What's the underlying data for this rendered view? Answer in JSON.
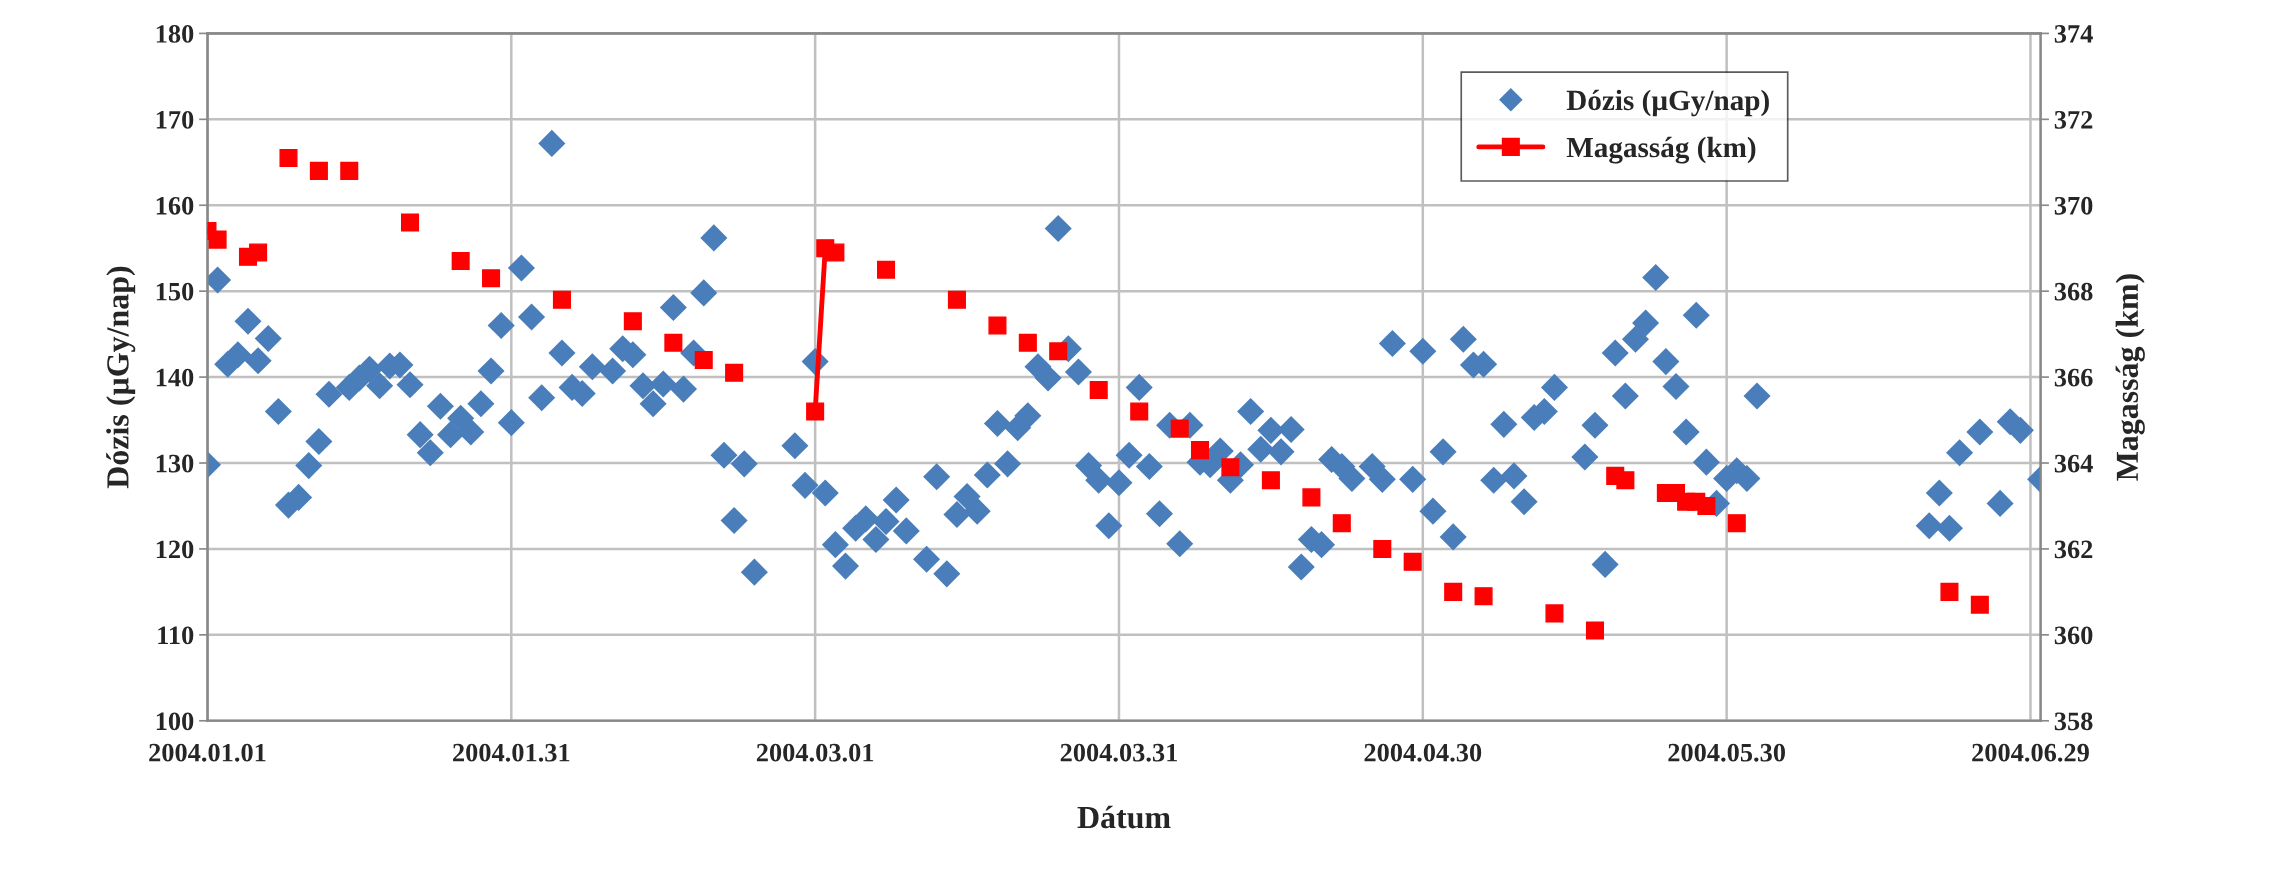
{
  "chart_data": {
    "type": "scatter",
    "xlabel": "Dátum",
    "ylabel": "Dózis (µGy/nap)",
    "y2label": "Magasság (km)",
    "xlim": [
      "2004-01-01",
      "2004-06-30"
    ],
    "xticks": [
      {
        "value": "2004-01-01",
        "label": "2004.01.01"
      },
      {
        "value": "2004-01-31",
        "label": "2004.01.31"
      },
      {
        "value": "2004-03-01",
        "label": "2004.03.01"
      },
      {
        "value": "2004-03-31",
        "label": "2004.03.31"
      },
      {
        "value": "2004-04-30",
        "label": "2004.04.30"
      },
      {
        "value": "2004-05-30",
        "label": "2004.05.30"
      },
      {
        "value": "2004-06-29",
        "label": "2004.06.29"
      }
    ],
    "ylim": [
      100,
      180
    ],
    "yticks": [
      100,
      110,
      120,
      130,
      140,
      150,
      160,
      170,
      180
    ],
    "y2lim": [
      358,
      374
    ],
    "y2ticks": [
      358,
      360,
      362,
      364,
      366,
      368,
      370,
      372,
      374
    ],
    "grid": true,
    "legend": "top right",
    "series": [
      {
        "name": "Dózis (µGy/nap)",
        "marker": "diamond",
        "color": "#4a7ebb",
        "x": [
          "2004-01-01",
          "2004-01-02",
          "2004-01-03",
          "2004-01-04",
          "2004-01-05",
          "2004-01-06",
          "2004-01-07",
          "2004-01-08",
          "2004-01-09",
          "2004-01-10",
          "2004-01-11",
          "2004-01-12",
          "2004-01-13",
          "2004-01-15",
          "2004-01-16",
          "2004-01-17",
          "2004-01-18",
          "2004-01-19",
          "2004-01-20",
          "2004-01-21",
          "2004-01-22",
          "2004-01-23",
          "2004-01-24",
          "2004-01-25",
          "2004-01-26",
          "2004-01-27",
          "2004-01-28",
          "2004-01-29",
          "2004-01-30",
          "2004-01-31",
          "2004-02-01",
          "2004-02-02",
          "2004-02-03",
          "2004-02-04",
          "2004-02-05",
          "2004-02-06",
          "2004-02-07",
          "2004-02-08",
          "2004-02-10",
          "2004-02-11",
          "2004-02-12",
          "2004-02-13",
          "2004-02-14",
          "2004-02-15",
          "2004-02-16",
          "2004-02-17",
          "2004-02-18",
          "2004-02-19",
          "2004-02-20",
          "2004-02-21",
          "2004-02-22",
          "2004-02-23",
          "2004-02-24",
          "2004-02-28",
          "2004-02-29",
          "2004-03-01",
          "2004-03-02",
          "2004-03-03",
          "2004-03-04",
          "2004-03-05",
          "2004-03-06",
          "2004-03-07",
          "2004-03-08",
          "2004-03-09",
          "2004-03-10",
          "2004-03-12",
          "2004-03-13",
          "2004-03-14",
          "2004-03-15",
          "2004-03-16",
          "2004-03-17",
          "2004-03-18",
          "2004-03-19",
          "2004-03-20",
          "2004-03-21",
          "2004-03-22",
          "2004-03-23",
          "2004-03-24",
          "2004-03-25",
          "2004-03-26",
          "2004-03-27",
          "2004-03-28",
          "2004-03-29",
          "2004-03-30",
          "2004-03-31",
          "2004-04-01",
          "2004-04-02",
          "2004-04-03",
          "2004-04-04",
          "2004-04-05",
          "2004-04-06",
          "2004-04-07",
          "2004-04-08",
          "2004-04-09",
          "2004-04-10",
          "2004-04-11",
          "2004-04-12",
          "2004-04-13",
          "2004-04-14",
          "2004-04-15",
          "2004-04-16",
          "2004-04-17",
          "2004-04-18",
          "2004-04-19",
          "2004-04-20",
          "2004-04-21",
          "2004-04-22",
          "2004-04-23",
          "2004-04-25",
          "2004-04-26",
          "2004-04-27",
          "2004-04-29",
          "2004-04-30",
          "2004-05-01",
          "2004-05-02",
          "2004-05-03",
          "2004-05-04",
          "2004-05-05",
          "2004-05-06",
          "2004-05-07",
          "2004-05-08",
          "2004-05-09",
          "2004-05-10",
          "2004-05-11",
          "2004-05-12",
          "2004-05-13",
          "2004-05-16",
          "2004-05-17",
          "2004-05-18",
          "2004-05-19",
          "2004-05-20",
          "2004-05-21",
          "2004-05-22",
          "2004-05-23",
          "2004-05-24",
          "2004-05-25",
          "2004-05-26",
          "2004-05-27",
          "2004-05-28",
          "2004-05-29",
          "2004-05-30",
          "2004-05-31",
          "2004-06-01",
          "2004-06-02",
          "2004-06-19",
          "2004-06-20",
          "2004-06-21",
          "2004-06-22",
          "2004-06-24",
          "2004-06-26",
          "2004-06-27",
          "2004-06-28",
          "2004-06-30"
        ],
        "values": [
          129.8,
          151.3,
          141.5,
          142.6,
          146.5,
          141.9,
          144.5,
          136.0,
          125.1,
          126.0,
          129.7,
          132.5,
          138.0,
          138.8,
          139.9,
          140.9,
          139.0,
          141.3,
          141.4,
          139.1,
          133.3,
          131.2,
          136.6,
          133.3,
          135.2,
          133.6,
          136.9,
          140.7,
          146.0,
          134.7,
          152.7,
          147.0,
          137.6,
          167.2,
          142.8,
          138.8,
          138.1,
          141.2,
          140.7,
          143.3,
          142.6,
          139.0,
          136.9,
          139.2,
          148.1,
          138.6,
          142.8,
          149.8,
          156.2,
          130.9,
          123.3,
          129.9,
          117.3,
          132.0,
          127.4,
          141.8,
          126.5,
          120.5,
          118.0,
          122.4,
          123.5,
          121.1,
          123.2,
          125.7,
          122.1,
          118.8,
          128.4,
          117.1,
          124.0,
          126.1,
          124.4,
          128.6,
          134.6,
          129.9,
          134.1,
          135.5,
          141.2,
          139.9,
          157.3,
          143.3,
          140.6,
          129.7,
          128.0,
          122.7,
          127.7,
          130.9,
          138.8,
          129.6,
          124.1,
          134.4,
          120.6,
          134.4,
          130.1,
          129.8,
          131.4,
          128.0,
          129.8,
          136.0,
          131.6,
          133.8,
          131.3,
          133.9,
          117.9,
          121.1,
          120.5,
          130.4,
          129.6,
          128.2,
          129.6,
          128.1,
          143.9,
          128.1,
          143.0,
          124.4,
          131.3,
          121.4,
          144.4,
          141.4,
          141.5,
          128.0,
          134.5,
          128.5,
          125.5,
          135.3,
          136.0,
          138.8,
          130.7,
          134.4,
          118.2,
          142.8,
          137.8,
          144.4,
          146.3,
          151.6,
          141.8,
          138.9,
          133.6,
          147.2,
          130.1,
          125.3,
          128.2,
          129.1,
          128.2,
          137.8,
          122.7,
          126.5,
          122.4,
          131.2,
          133.6,
          125.3,
          134.8,
          133.8,
          128.1
        ]
      },
      {
        "name": "Magasság (km)",
        "type": "line",
        "marker": "square",
        "line_style": "solid",
        "axis": "y2",
        "color": "#ff0000",
        "x": [
          "2004-01-01",
          "2004-01-02",
          "2004-01-03",
          "2004-01-05",
          "2004-01-06",
          "2004-01-07",
          "2004-01-09",
          "2004-01-10",
          "2004-01-12",
          "2004-01-13",
          "2004-01-15",
          "2004-01-16",
          "2004-01-21",
          "2004-01-22",
          "2004-01-26",
          "2004-01-27",
          "2004-01-29",
          "2004-01-30",
          "2004-02-05",
          "2004-02-06",
          "2004-02-12",
          "2004-02-13",
          "2004-02-16",
          "2004-02-17",
          "2004-02-19",
          "2004-02-20",
          "2004-02-22",
          "2004-02-23",
          "2004-03-01",
          "2004-03-02",
          "2004-03-03",
          "2004-03-04",
          "2004-03-08",
          "2004-03-09",
          "2004-03-15",
          "2004-03-16",
          "2004-03-19",
          "2004-03-20",
          "2004-03-22",
          "2004-03-23",
          "2004-03-25",
          "2004-03-26",
          "2004-03-29",
          "2004-03-30",
          "2004-04-02",
          "2004-04-03",
          "2004-04-06",
          "2004-04-07",
          "2004-04-08",
          "2004-04-09",
          "2004-04-11",
          "2004-04-12",
          "2004-04-15",
          "2004-04-16",
          "2004-04-19",
          "2004-04-20",
          "2004-04-22",
          "2004-04-23",
          "2004-04-26",
          "2004-04-27",
          "2004-04-29",
          "2004-04-30",
          "2004-05-03",
          "2004-05-04",
          "2004-05-06",
          "2004-05-07",
          "2004-05-13",
          "2004-05-14",
          "2004-05-17",
          "2004-05-18",
          "2004-05-19",
          "2004-05-20",
          "2004-05-21",
          "2004-05-24",
          "2004-05-25",
          "2004-05-26",
          "2004-05-27",
          "2004-05-28",
          "2004-05-29",
          "2004-05-31",
          "2004-06-01",
          "2004-06-21",
          "2004-06-22",
          "2004-06-24"
        ],
        "values": [
          369.4,
          369.2,
          null,
          368.8,
          368.9,
          null,
          371.1,
          null,
          370.8,
          null,
          370.8,
          null,
          369.6,
          null,
          368.7,
          null,
          368.3,
          null,
          367.8,
          null,
          367.3,
          null,
          366.8,
          null,
          366.4,
          null,
          366.1,
          null,
          365.2,
          369.0,
          368.9,
          null,
          368.5,
          null,
          367.8,
          null,
          367.2,
          null,
          366.8,
          null,
          366.6,
          null,
          365.7,
          null,
          365.2,
          null,
          364.8,
          null,
          364.3,
          null,
          363.9,
          null,
          363.6,
          null,
          363.2,
          null,
          362.6,
          null,
          362.0,
          null,
          361.7,
          null,
          361.0,
          null,
          360.9,
          null,
          360.5,
          null,
          360.1,
          null,
          363.7,
          363.6,
          null,
          363.3,
          363.3,
          363.1,
          363.1,
          363.0,
          null,
          362.6,
          null,
          361.0,
          null,
          360.7
        ]
      }
    ]
  }
}
